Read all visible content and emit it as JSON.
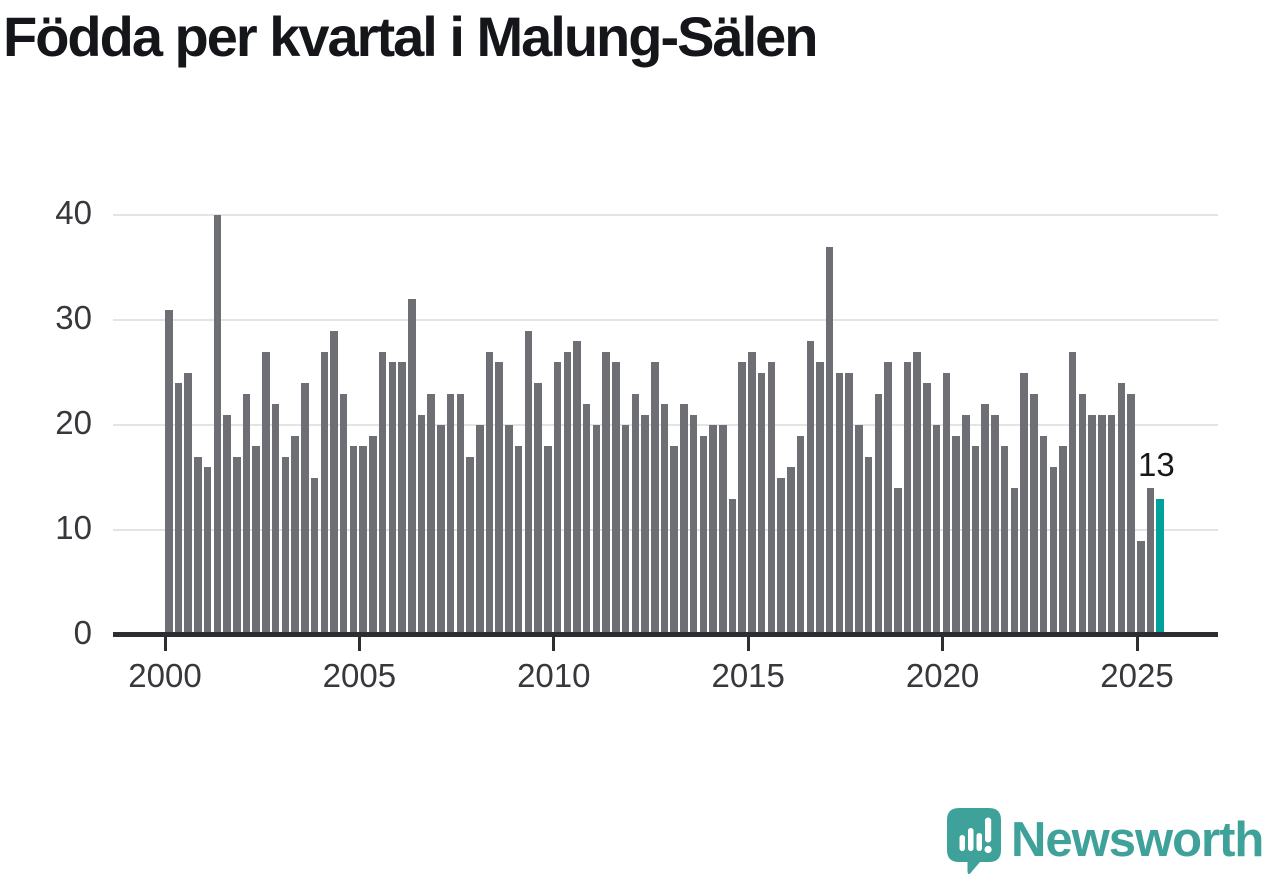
{
  "title": "Födda per kvartal i Malung-Sälen",
  "chart_data": {
    "type": "bar",
    "title": "Födda per kvartal i Malung-Sälen",
    "x_start": {
      "year": 2000,
      "quarter": 1
    },
    "x_end": {
      "year": 2025,
      "quarter": 3
    },
    "values": [
      31,
      24,
      25,
      17,
      16,
      40,
      21,
      17,
      23,
      18,
      27,
      22,
      17,
      19,
      24,
      15,
      27,
      29,
      23,
      18,
      18,
      19,
      27,
      26,
      26,
      32,
      21,
      23,
      20,
      23,
      23,
      17,
      20,
      27,
      26,
      20,
      18,
      29,
      24,
      18,
      26,
      27,
      28,
      22,
      20,
      27,
      26,
      20,
      23,
      21,
      26,
      22,
      18,
      22,
      21,
      19,
      20,
      20,
      13,
      26,
      27,
      25,
      26,
      15,
      16,
      19,
      28,
      26,
      37,
      25,
      25,
      20,
      17,
      23,
      26,
      14,
      26,
      27,
      24,
      20,
      25,
      19,
      21,
      18,
      22,
      21,
      18,
      14,
      25,
      23,
      19,
      16,
      18,
      27,
      23,
      21,
      21,
      21,
      24,
      23,
      9,
      14,
      13
    ],
    "highlight_last_bar": true,
    "annotation": {
      "text": "13",
      "target": "2025-Q3"
    },
    "xticks": [
      2000,
      2005,
      2010,
      2015,
      2020,
      2025
    ],
    "yticks": [
      0,
      10,
      20,
      30,
      40
    ],
    "ylim": [
      0,
      40
    ],
    "xlabel": "",
    "ylabel": "",
    "legend": "none",
    "grid": "horizontal",
    "colors": {
      "bar": "#6e6f75",
      "highlight": "#00a19b",
      "axis": "#2d2e32",
      "gridline": "#e4e4e4",
      "tick_label": "#37373c"
    }
  },
  "logo": {
    "text": "Newsworthy",
    "color": "#3fa29a",
    "icon": "newsworthy-bubble-chart-icon"
  }
}
